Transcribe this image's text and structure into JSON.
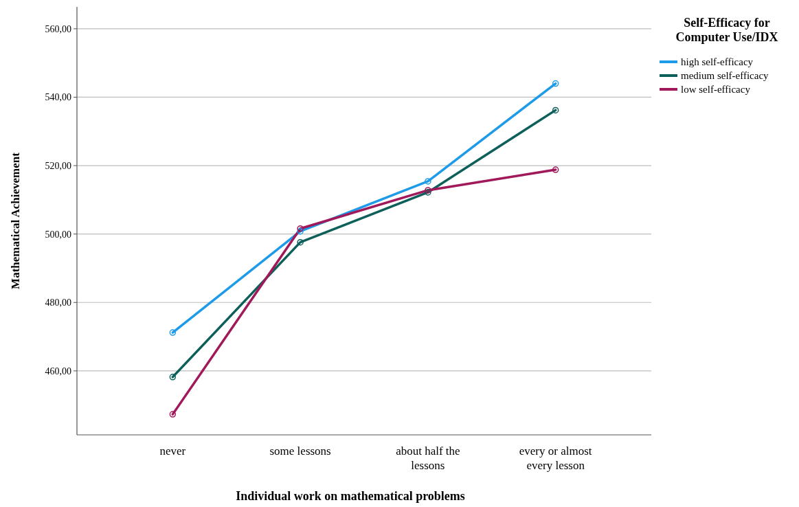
{
  "chart_data": {
    "type": "line",
    "xlabel": "Individual work on mathematical problems",
    "ylabel": "Mathematical Achievement",
    "legend_title": "Self-Efficacy for Computer Use/IDX",
    "categories": [
      "never",
      "some lessons",
      "about half the lessons",
      "every or almost every lesson"
    ],
    "series": [
      {
        "name": "high self-efficacy",
        "color": "#1e9be8",
        "values": [
          471.2,
          500.8,
          515.4,
          544.0
        ]
      },
      {
        "name": "medium self-efficacy",
        "color": "#0d5f5a",
        "values": [
          458.2,
          497.6,
          512.2,
          536.2
        ]
      },
      {
        "name": "low self-efficacy",
        "color": "#a0195a",
        "values": [
          447.3,
          501.6,
          512.8,
          518.8
        ]
      }
    ],
    "ylim": [
      441.3,
      566.4
    ],
    "yticks": [
      {
        "value": 460,
        "label": "460,00"
      },
      {
        "value": 480,
        "label": "480,00"
      },
      {
        "value": 500,
        "label": "500,00"
      },
      {
        "value": 520,
        "label": "520,00"
      },
      {
        "value": 540,
        "label": "540,00"
      },
      {
        "value": 560,
        "label": "560,00"
      }
    ],
    "grid": "y",
    "legend": "top right",
    "marker": "circle",
    "line_style": "solid"
  }
}
